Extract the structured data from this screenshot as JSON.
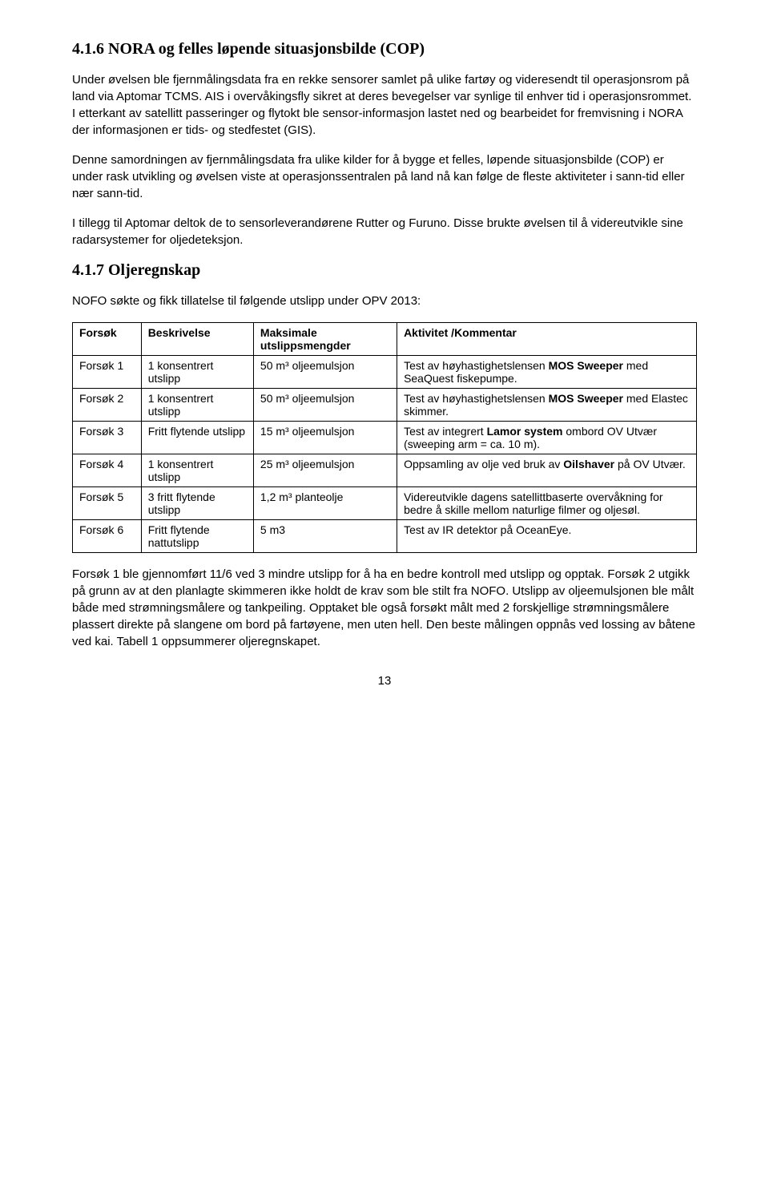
{
  "section1": {
    "heading": "4.1.6 NORA og felles løpende situasjonsbilde (COP)",
    "para1": "Under øvelsen ble fjernmålingsdata fra en rekke sensorer samlet på ulike fartøy og videresendt til operasjonsrom på land via Aptomar TCMS. AIS i overvåkingsfly sikret at deres bevegelser var synlige til enhver tid i operasjonsrommet. I etterkant av satellitt passeringer og flytokt ble sensor-informasjon lastet ned og bearbeidet for fremvisning i NORA der informasjonen er tids- og stedfestet (GIS).",
    "para2": "Denne samordningen av fjernmålingsdata fra ulike kilder for å bygge et felles, løpende situasjonsbilde (COP) er under rask utvikling og øvelsen viste at operasjonssentralen på land nå kan følge de fleste aktiviteter i sann-tid eller nær sann-tid.",
    "para3": "I tillegg til Aptomar deltok de to sensorleverandørene Rutter og Furuno. Disse brukte øvelsen til å videreutvikle sine radarsystemer for oljedeteksjon."
  },
  "section2": {
    "heading": "4.1.7 Oljeregnskap",
    "intro": "NOFO søkte og fikk tillatelse til følgende utslipp under OPV 2013:",
    "table": {
      "headers": [
        "Forsøk",
        "Beskrivelse",
        "Maksimale utslippsmengder",
        "Aktivitet /Kommentar"
      ],
      "rows": [
        {
          "forsok": "Forsøk 1",
          "beskrivelse": "1 konsentrert utslipp",
          "maksimale": "50 m³ oljeemulsjon",
          "aktivitet_pre": "Test av høyhastighetslensen ",
          "aktivitet_bold": "MOS Sweeper",
          "aktivitet_post": " med SeaQuest fiskepumpe."
        },
        {
          "forsok": "Forsøk 2",
          "beskrivelse": "1 konsentrert utslipp",
          "maksimale": "50 m³ oljeemulsjon",
          "aktivitet_pre": "Test av høyhastighetslensen ",
          "aktivitet_bold": "MOS Sweeper",
          "aktivitet_post": " med Elastec skimmer."
        },
        {
          "forsok": "Forsøk 3",
          "beskrivelse": "Fritt flytende utslipp",
          "maksimale": "15 m³ oljeemulsjon",
          "aktivitet_pre": "Test av integrert ",
          "aktivitet_bold": "Lamor system",
          "aktivitet_post": " ombord OV Utvær (sweeping arm = ca. 10 m)."
        },
        {
          "forsok": "Forsøk 4",
          "beskrivelse": "1 konsentrert utslipp",
          "maksimale": "25 m³ oljeemulsjon",
          "aktivitet_pre": "Oppsamling av olje ved bruk av ",
          "aktivitet_bold": "Oilshaver",
          "aktivitet_post": " på OV Utvær."
        },
        {
          "forsok": "Forsøk 5",
          "beskrivelse": "3 fritt flytende utslipp",
          "maksimale": "1,2 m³ planteolje",
          "aktivitet_pre": "Videreutvikle dagens satellittbaserte overvåkning for bedre å skille mellom naturlige filmer og oljesøl.",
          "aktivitet_bold": "",
          "aktivitet_post": ""
        },
        {
          "forsok": "Forsøk 6",
          "beskrivelse": "Fritt flytende nattutslipp",
          "maksimale": "5 m3",
          "aktivitet_pre": "Test av IR detektor på OceanEye.",
          "aktivitet_bold": "",
          "aktivitet_post": ""
        }
      ]
    },
    "footer_para": "Forsøk 1 ble gjennomført 11/6 ved 3 mindre utslipp for å ha en bedre kontroll med utslipp og opptak. Forsøk 2 utgikk på grunn av at den planlagte skimmeren ikke holdt de krav som ble stilt fra NOFO. Utslipp av oljeemulsjonen ble målt både med strømningsmålere og tankpeiling. Opptaket ble også forsøkt målt med 2 forskjellige strømningsmålere plassert direkte på slangene om bord på fartøyene, men uten hell. Den beste målingen oppnås ved lossing av båtene ved kai. Tabell 1 oppsummerer oljeregnskapet."
  },
  "page_number": "13"
}
